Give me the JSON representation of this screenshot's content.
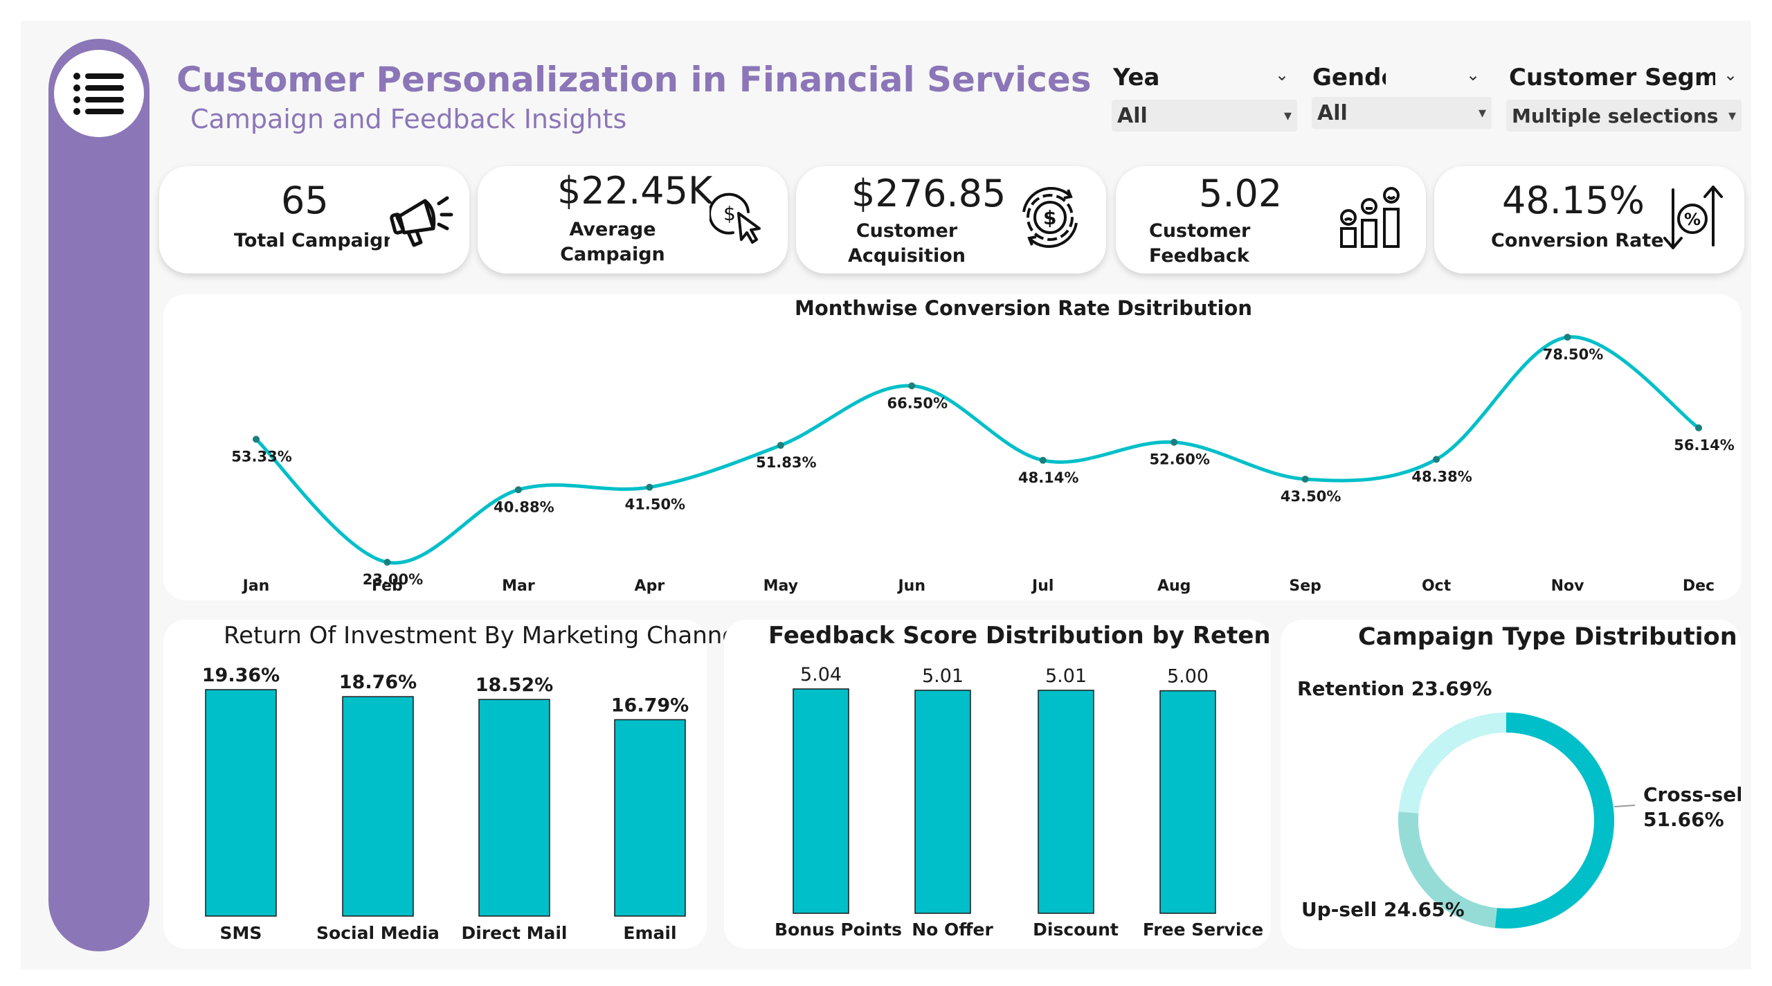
{
  "header": {
    "title": "Customer Personalization in Financial Services",
    "subtitle": "Campaign and Feedback Insights"
  },
  "filters": {
    "year": {
      "label": "Yea",
      "value": "All"
    },
    "gender": {
      "label": "Gende",
      "value": "All"
    },
    "segment": {
      "label": "Customer Segm",
      "value": "Multiple selections"
    }
  },
  "kpis": {
    "campaigns": {
      "value": "65",
      "label": "Total Campaigns"
    },
    "avg_campaign": {
      "value": "$22.45K",
      "label_1": "Average",
      "label_2": "Campaign"
    },
    "acquisition": {
      "value": "$276.85",
      "label_1": "Customer",
      "label_2": "Acquisition"
    },
    "feedback": {
      "value": "5.02",
      "label_1": "Customer",
      "label_2": "Feedback"
    },
    "conversion": {
      "value": "48.15%",
      "label": "Conversion Rate"
    }
  },
  "icons": {
    "menu": "menu-list-icon",
    "campaigns": "megaphone-icon",
    "avg_campaign": "dollar-cursor-icon",
    "acquisition": "dollar-cycle-icon",
    "feedback": "feedback-faces-icon",
    "conversion": "percent-arrows-icon"
  },
  "colors": {
    "brand": "#8b76b7",
    "teal": "#00bfc8",
    "teal_light": "#c2f5f3",
    "teal_mid": "#96dcd6"
  },
  "chart_data": [
    {
      "type": "line",
      "title": "Monthwise Conversion Rate Dsitribution",
      "categories": [
        "Jan",
        "Feb",
        "Mar",
        "Apr",
        "May",
        "Jun",
        "Jul",
        "Aug",
        "Sep",
        "Oct",
        "Nov",
        "Dec"
      ],
      "values": [
        53.33,
        23.0,
        40.88,
        41.5,
        51.83,
        66.5,
        48.14,
        52.6,
        43.5,
        48.38,
        78.5,
        56.14
      ],
      "labels": [
        "53.33%",
        "23.00%",
        "40.88%",
        "41.50%",
        "51.83%",
        "66.50%",
        "48.14%",
        "52.60%",
        "43.50%",
        "48.38%",
        "78.50%",
        "56.14%"
      ],
      "ylim": [
        23,
        78.5
      ]
    },
    {
      "type": "bar",
      "title": "Return Of Investment By Marketing Channel",
      "categories": [
        "SMS",
        "Social Media",
        "Direct Mail",
        "Email"
      ],
      "values": [
        19.36,
        18.76,
        18.52,
        16.79
      ],
      "labels": [
        "19.36%",
        "18.76%",
        "18.52%",
        "16.79%"
      ],
      "ylim": [
        0,
        19.36
      ]
    },
    {
      "type": "bar",
      "title": "Feedback Score Distribution by Retentic",
      "categories": [
        "Bonus Points",
        "No Offer",
        "Discount",
        "Free Service"
      ],
      "values": [
        5.04,
        5.01,
        5.01,
        5.0
      ],
      "labels": [
        "5.04",
        "5.01",
        "5.01",
        "5.00"
      ],
      "ylim": [
        0,
        5.04
      ]
    },
    {
      "type": "pie",
      "title": "Campaign Type Distribution",
      "categories": [
        "Cross-sell",
        "Up-sell",
        "Retention"
      ],
      "values": [
        51.66,
        24.65,
        23.69
      ],
      "label_names": [
        "Cross-sell",
        "Up-sell",
        "Retention"
      ],
      "label_values": [
        "51.66%",
        "24.65%",
        "23.69%"
      ]
    }
  ]
}
